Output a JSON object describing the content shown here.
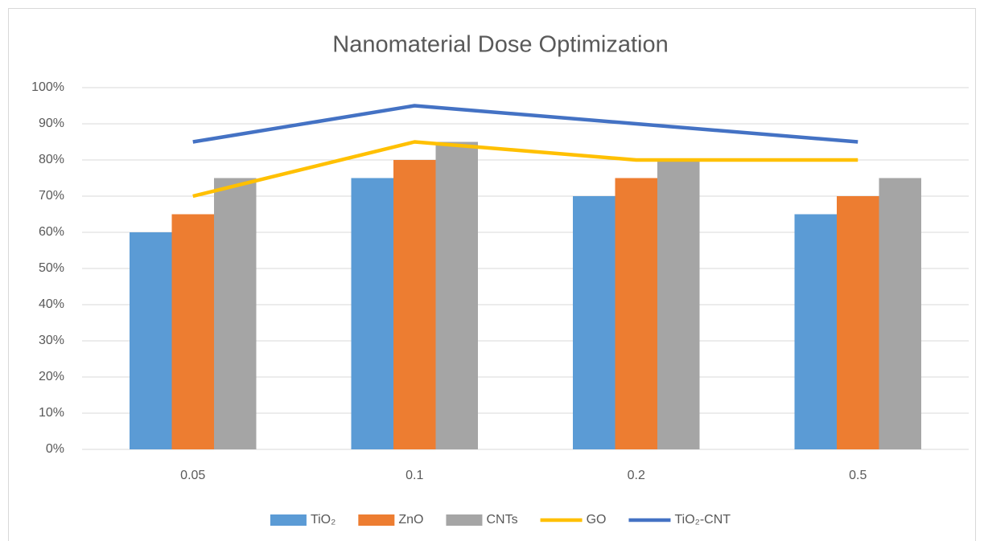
{
  "chart_data": {
    "type": "bar",
    "title": "Nanomaterial Dose Optimization",
    "categories": [
      "0.05",
      "0.1",
      "0.2",
      "0.5"
    ],
    "series": [
      {
        "name": "TiO₂",
        "type": "bar",
        "color": "#5b9bd5",
        "values": [
          60,
          75,
          70,
          65
        ]
      },
      {
        "name": "ZnO",
        "type": "bar",
        "color": "#ed7d31",
        "values": [
          65,
          80,
          75,
          70
        ]
      },
      {
        "name": "CNTs",
        "type": "bar",
        "color": "#a5a5a5",
        "values": [
          75,
          85,
          80,
          75
        ]
      },
      {
        "name": "GO",
        "type": "line",
        "color": "#ffc000",
        "values": [
          70,
          85,
          80,
          80
        ]
      },
      {
        "name": "TiO₂-CNT",
        "type": "line",
        "color": "#4472c4",
        "values": [
          85,
          95,
          90,
          85
        ]
      }
    ],
    "ylim": [
      0,
      100
    ],
    "yticks": [
      {
        "value": 0,
        "label": "0%"
      },
      {
        "value": 10,
        "label": "10%"
      },
      {
        "value": 20,
        "label": "20%"
      },
      {
        "value": 30,
        "label": "30%"
      },
      {
        "value": 40,
        "label": "40%"
      },
      {
        "value": 50,
        "label": "50%"
      },
      {
        "value": 60,
        "label": "60%"
      },
      {
        "value": 70,
        "label": "70%"
      },
      {
        "value": 80,
        "label": "80%"
      },
      {
        "value": 90,
        "label": "90%"
      },
      {
        "value": 100,
        "label": "100%"
      }
    ],
    "grid": true,
    "legend": "bottom"
  }
}
